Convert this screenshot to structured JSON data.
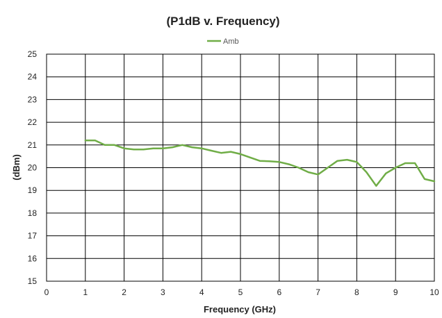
{
  "chart_data": {
    "type": "line",
    "title": "(P1dB v. Frequency)",
    "xlabel": "Frequency (GHz)",
    "ylabel": "(dBm)",
    "xlim": [
      0,
      10
    ],
    "ylim": [
      15,
      25
    ],
    "x_ticks": [
      0,
      1,
      2,
      3,
      4,
      5,
      6,
      7,
      8,
      9,
      10
    ],
    "y_ticks": [
      15,
      16,
      17,
      18,
      19,
      20,
      21,
      22,
      23,
      24,
      25
    ],
    "x_tick_labels": [
      "0",
      "1",
      "2",
      "3",
      "4",
      "5",
      "6",
      "7",
      "8",
      "9",
      "10"
    ],
    "y_tick_labels": [
      "15",
      "16",
      "17",
      "18",
      "19",
      "20",
      "21",
      "22",
      "23",
      "24",
      "25"
    ],
    "grid": true,
    "legend_position": "top-center",
    "series": [
      {
        "name": "Amb",
        "color": "#70ad47",
        "x": [
          1.0,
          1.25,
          1.5,
          1.75,
          2.0,
          2.25,
          2.5,
          2.75,
          3.0,
          3.25,
          3.5,
          3.75,
          4.0,
          4.25,
          4.5,
          4.75,
          5.0,
          5.25,
          5.5,
          5.75,
          6.0,
          6.25,
          6.5,
          6.75,
          7.0,
          7.25,
          7.5,
          7.75,
          8.0,
          8.25,
          8.5,
          8.75,
          9.0,
          9.25,
          9.5,
          9.75,
          10.0
        ],
        "y": [
          21.2,
          21.2,
          21.0,
          21.0,
          20.85,
          20.8,
          20.8,
          20.85,
          20.85,
          20.9,
          21.0,
          20.9,
          20.85,
          20.75,
          20.65,
          20.7,
          20.6,
          20.45,
          20.3,
          20.28,
          20.25,
          20.15,
          20.0,
          19.8,
          19.7,
          20.0,
          20.3,
          20.35,
          20.25,
          19.8,
          19.2,
          19.75,
          20.0,
          20.2,
          20.2,
          19.5,
          19.4
        ]
      }
    ]
  }
}
